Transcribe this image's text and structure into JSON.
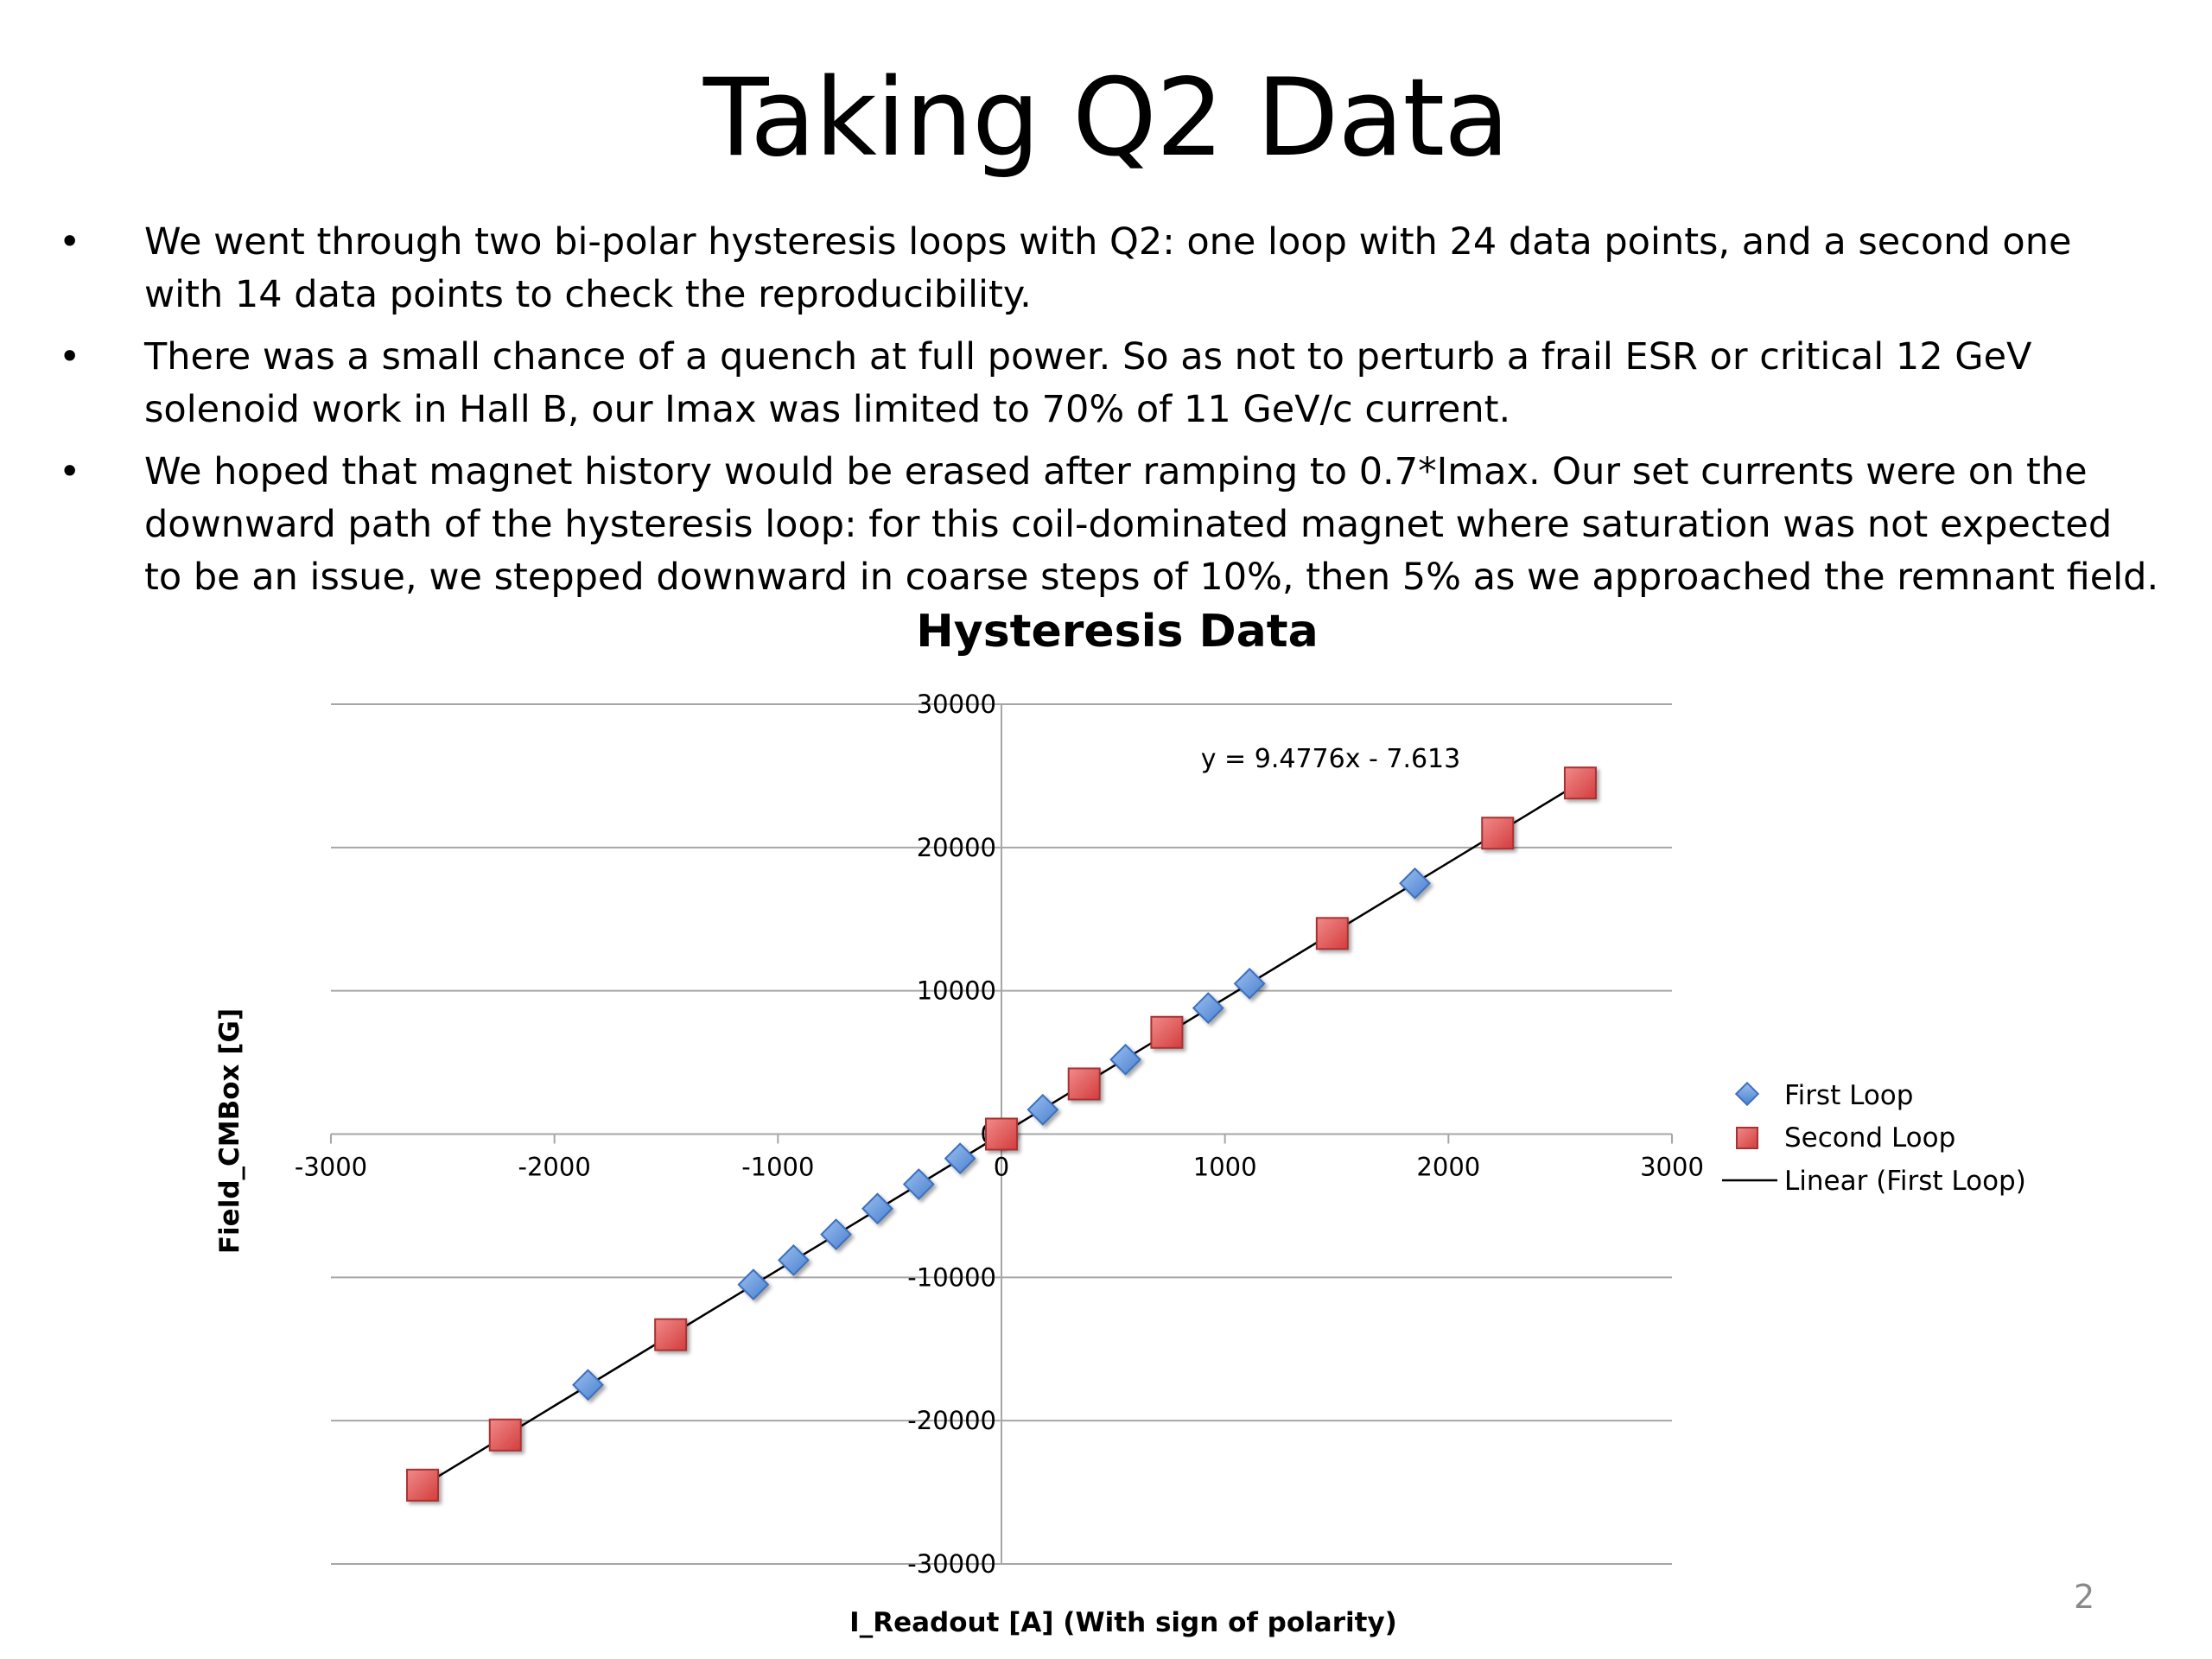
{
  "slide": {
    "title": "Taking Q2 Data",
    "bullet_marker": "•",
    "bullets": [
      "We went through two bi-polar hysteresis loops with Q2: one loop with 24 data points, and a second one with 14 data points to check the reproducibility.",
      "There was a small chance of a quench at full power. So as not to perturb a frail ESR or critical 12 GeV solenoid work in Hall B, our Imax was limited to 70% of 11 GeV/c current.",
      "We hoped that magnet history would be erased after ramping to 0.7*Imax. Our set currents were on the downward path of the hysteresis loop: for this coil-dominated magnet where saturation was not expected to be an issue, we stepped downward in coarse steps of 10%, then 5%  as we approached the remnant field."
    ],
    "page_number": "2"
  },
  "chart_data": {
    "type": "scatter",
    "title": "Hysteresis Data",
    "xlabel": "I_Readout [A] (With sign of polarity)",
    "ylabel": "Field_CMBox [G]",
    "xlim": [
      -3000,
      3000
    ],
    "ylim": [
      -30000,
      30000
    ],
    "x_ticks": [
      -3000,
      -2000,
      -1000,
      0,
      1000,
      2000,
      3000
    ],
    "y_ticks": [
      -30000,
      -20000,
      -10000,
      0,
      10000,
      20000,
      30000
    ],
    "x_tick_labels": [
      "-3000",
      "-2000",
      "-1000",
      "0",
      "1000",
      "2000",
      "3000"
    ],
    "y_tick_labels": [
      "-30000",
      "-20000",
      "-10000",
      "0",
      "10000",
      "20000",
      "30000"
    ],
    "grid": "horizontal major gridlines",
    "legend_position": "right",
    "series": [
      {
        "name": "First Loop",
        "marker": "diamond",
        "color": "#5b8fd6",
        "x": [
          -1850,
          -1110,
          -930,
          -740,
          -555,
          -370,
          -185,
          0,
          185,
          555,
          925,
          1110,
          1850
        ],
        "y": [
          -17500,
          -10500,
          -8800,
          -7000,
          -5200,
          -3500,
          -1700,
          0,
          1700,
          5200,
          8800,
          10500,
          17500
        ]
      },
      {
        "name": "Second Loop",
        "marker": "square",
        "color": "#e05555",
        "x": [
          -2590,
          -2220,
          -1480,
          0,
          370,
          740,
          1480,
          2220,
          2590
        ],
        "y": [
          -24500,
          -21000,
          -14000,
          0,
          3500,
          7100,
          14000,
          21000,
          24500
        ]
      }
    ],
    "trendline": {
      "name": "Linear (First Loop)",
      "equation": "y = 9.4776x - 7.613",
      "slope": 9.4776,
      "intercept": -7.613,
      "x_range": [
        -2590,
        2590
      ],
      "color": "#000000"
    }
  }
}
